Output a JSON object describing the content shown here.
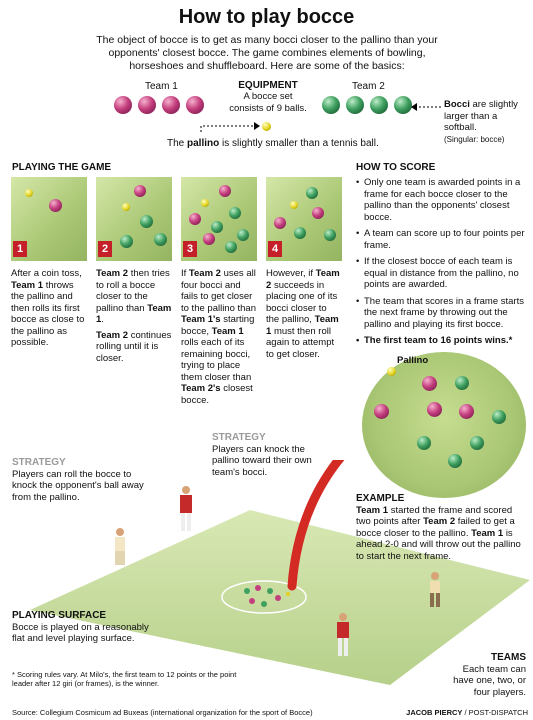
{
  "title": "How to play bocce",
  "intro": "The object of bocce is to get as many bocci closer to the pallino than your opponents' closest bocce. The game combines elements of bowling, horseshoes and shuffleboard. Here are some of the basics:",
  "equipment": {
    "team1": "Team 1",
    "team2": "Team 2",
    "heading": "EQUIPMENT",
    "text": "A bocce set consists of 9 balls.",
    "bocci_bold": "Bocci",
    "bocci_text": "are slightly larger than a softball.",
    "bocci_note": "(Singular: bocce)",
    "pallino_pre": "The",
    "pallino_bold": "pallino",
    "pallino_text": "is slightly smaller than a tennis ball."
  },
  "playing": {
    "heading": "PLAYING THE GAME",
    "steps": [
      {
        "num": "1",
        "p1": "After a coin toss,",
        "b1": "Team 1",
        "p2": "throws the pallino and then rolls its first bocce as close to the pallino as possible."
      },
      {
        "num": "2",
        "b1": "Team 2",
        "p1": "then tries to roll a bocce closer to the pallino than",
        "b2": "Team 1",
        "p2": ".",
        "b3": "Team 2",
        "p3": "continues rolling until it is closer."
      },
      {
        "num": "3",
        "p0": "If",
        "b1": "Team 2",
        "p1": "uses all four bocci and fails to get closer to the pallino than",
        "b2": "Team 1's",
        "p2": "starting bocce,",
        "b3": "Team 1",
        "p3": "rolls each of its remaining bocci, trying to place them closer than",
        "b4": "Team 2's",
        "p4": "closest bocce."
      },
      {
        "num": "4",
        "p0": "However, if",
        "b1": "Team 2",
        "p1": "succeeds in placing one of its bocci closer to the pallino,",
        "b2": "Team 1",
        "p2": "must then roll again to attempt to get closer."
      }
    ]
  },
  "scoring": {
    "heading": "HOW TO SCORE",
    "items": [
      "Only one team is awarded points in a frame for each bocce closer to the pallino than the opponents' closest bocce.",
      "A team can score up to four points per frame.",
      "If the closest bocce of each team is equal in distance from the pallino, no points are awarded.",
      "The team that scores in a frame starts the next frame  by throwing out the pallino and playing  its first bocce."
    ],
    "final": "The first team to 16 points wins.*"
  },
  "pallino_label": "Pallino",
  "strategy1": {
    "heading": "STRATEGY",
    "text": "Players can roll the bocce to knock the opponent's ball away from the pallino."
  },
  "strategy2": {
    "heading": "STRATEGY",
    "text": "Players can knock the pallino toward their own team's bocci."
  },
  "example": {
    "heading": "EXAMPLE",
    "b1": "Team 1",
    "p1": "started the frame and scored two points after",
    "b2": "Team 2",
    "p2": "failed to get a bocce closer to the pallino.",
    "b3": "Team 1",
    "p3": "is ahead 2-0 and will throw out the pallino to start the next frame."
  },
  "surface": {
    "heading": "PLAYING SURFACE",
    "text": "Bocce is played on a reasonably flat and level playing surface."
  },
  "teams": {
    "heading": "TEAMS",
    "text": "Each team can have one,  two, or four players."
  },
  "footnote": "* Scoring rules vary.  At Milo's, the first team to 12 points or the point leader after 12 giri (or frames), is the winner.",
  "source": "Source: Collegium Cosmicum ad Buxeas (international organization for the sport of Bocce)",
  "credit_bold": "JACOB PIERCY",
  "credit_rest": " / POST-DISPATCH",
  "colors": {
    "team1": "#c43f7e",
    "team2": "#3fa060",
    "pallino": "#e2d21c",
    "accent": "#c5202a"
  }
}
